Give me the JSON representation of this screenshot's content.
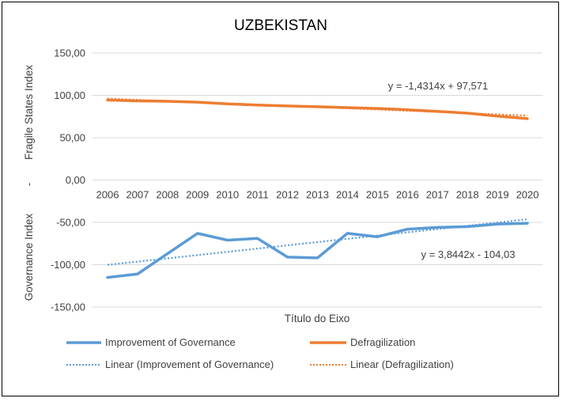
{
  "chart_data": {
    "type": "line",
    "title": "UZBEKISTAN",
    "xlabel": "Título do Eixo",
    "ylabel_top": "Fragile States Index",
    "ylabel_sep": "-",
    "ylabel_bottom": "Governance Index",
    "categories": [
      "2006",
      "2007",
      "2008",
      "2009",
      "2010",
      "2011",
      "2012",
      "2013",
      "2014",
      "2015",
      "2016",
      "2017",
      "2018",
      "2019",
      "2020"
    ],
    "ylim": [
      -150,
      150
    ],
    "yticks": [
      150,
      100,
      50,
      0,
      -50,
      -100,
      -150
    ],
    "ytick_labels": [
      "150,00",
      "100,00",
      "50,00",
      "0,00",
      "-50,00",
      "-100,00",
      "-150,00"
    ],
    "grid": true,
    "legend_position": "bottom",
    "series": [
      {
        "name": "Improvement of Governance",
        "color": "#5b9bd5",
        "values": [
          -115,
          -111,
          -87,
          -63,
          -71,
          -69,
          -91,
          -92,
          -63,
          -67,
          -58,
          -56,
          -55,
          -52,
          -51
        ],
        "trendline": {
          "name": "Linear (Improvement of Governance)",
          "slope": 3.8442,
          "intercept": -104.03,
          "equation": "y = 3,8442x - 104,03"
        }
      },
      {
        "name": "Defragilization",
        "color": "#ed7d31",
        "values": [
          94.5,
          93.5,
          93,
          92,
          90,
          88.5,
          87.5,
          86.5,
          85.5,
          84.5,
          83,
          81,
          79,
          75.5,
          72.5
        ],
        "trendline": {
          "name": "Linear (Defragilization)",
          "slope": -1.4314,
          "intercept": 97.571,
          "equation": "y = -1,4314x + 97,571"
        }
      }
    ]
  }
}
